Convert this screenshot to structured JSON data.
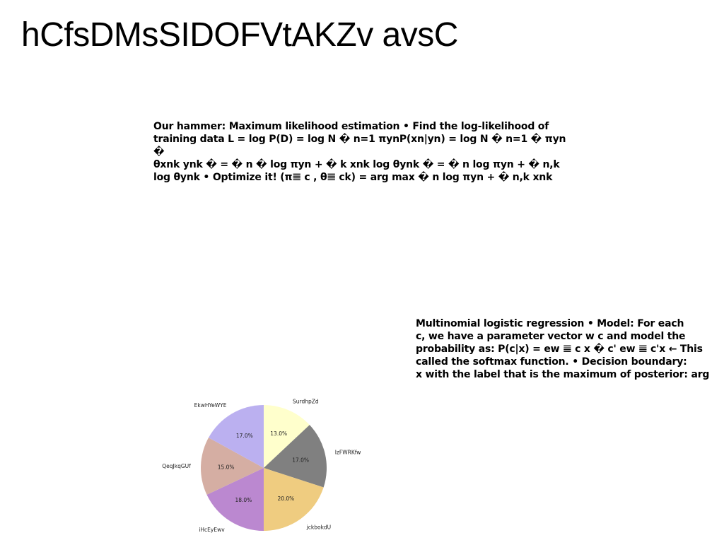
{
  "page": {
    "title": "hCfsDMsSIDOFVtAKZv avsC"
  },
  "text_block_1": {
    "lines": [
      "Our hammer: Maximum likelihood estimation • Find the log-likelihood of",
      "training data L = log P(D) = log N � n=1 πynP(xn|yn) = log N � n=1 � πyn �",
      "θxnk ynk � = � n � log πyn + � k xnk log θynk � = � n log πyn + � n,k",
      "log θynk • Optimize it! (π𝌆 c , θ𝌆 ck) = arg max � n log πyn + � n,k xnk"
    ]
  },
  "text_block_2": {
    "lines": [
      "Multinomial logistic regression • Model: For each",
      "c, we have a parameter vector w c and model the",
      "probability as: P(c|x) = ew 𝌆 c x � c' ew 𝌆 c'x ← This",
      "called the softmax function. • Decision boundary:",
      "x with the label that is the maximum of posterior: arg"
    ]
  },
  "chart_data": {
    "type": "pie",
    "title": "",
    "start_angle_deg": 90,
    "direction": "clockwise",
    "slices": [
      {
        "label": "SurdhpZd",
        "value": 13.0,
        "pct_label": "13.0%",
        "color": "#ffffcc"
      },
      {
        "label": "IzFWRKfw",
        "value": 17.0,
        "pct_label": "17.0%",
        "color": "#808080"
      },
      {
        "label": "jckbokdU",
        "value": 20.0,
        "pct_label": "20.0%",
        "color": "#efcc80"
      },
      {
        "label": "iHcEyEwv",
        "value": 18.0,
        "pct_label": "18.0%",
        "color": "#bb88d0"
      },
      {
        "label": "QeqJkqGUf",
        "value": 15.0,
        "pct_label": "15.0%",
        "color": "#d5aea3"
      },
      {
        "label": "EkwHYeWYE",
        "value": 17.0,
        "pct_label": "17.0%",
        "color": "#bbb0f0"
      }
    ]
  }
}
